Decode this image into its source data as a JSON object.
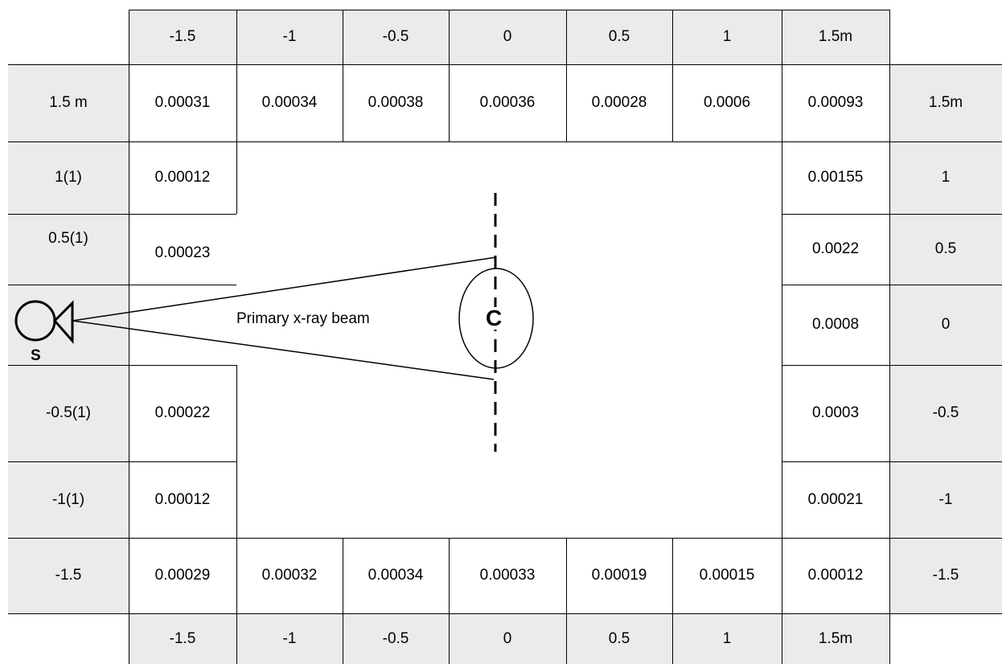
{
  "top_axis": [
    "-1.5",
    "-1",
    "-0.5",
    "0",
    "0.5",
    "1",
    "1.5m"
  ],
  "bottom_axis": [
    "-1.5",
    "-1",
    "-0.5",
    "0",
    "0.5",
    "1",
    "1.5m"
  ],
  "left_axis": [
    "1.5 m",
    "1(1)",
    "0.5(1)",
    "",
    "-0.5(1)",
    "-1(1)",
    "-1.5"
  ],
  "right_axis": [
    "1.5m",
    "1",
    "0.5",
    "0",
    "-0.5",
    "-1",
    "-1.5"
  ],
  "top_row_values": [
    "0.00031",
    "0.00034",
    "0.00038",
    "0.00036",
    "0.00028",
    "0.0006",
    "0.00093"
  ],
  "bottom_row_values": [
    "0.00029",
    "0.00032",
    "0.00034",
    "0.00033",
    "0.00019",
    "0.00015",
    "0.00012"
  ],
  "left_col_values": [
    "0.00012",
    "0.00023",
    "",
    "0.00022",
    "0.00012"
  ],
  "right_col_values": [
    "0.00155",
    "0.0022",
    "0.0008",
    "0.0003",
    "0.00021"
  ],
  "source_label": "S",
  "beam_label": "Primary x-ray beam",
  "center_label": "C"
}
